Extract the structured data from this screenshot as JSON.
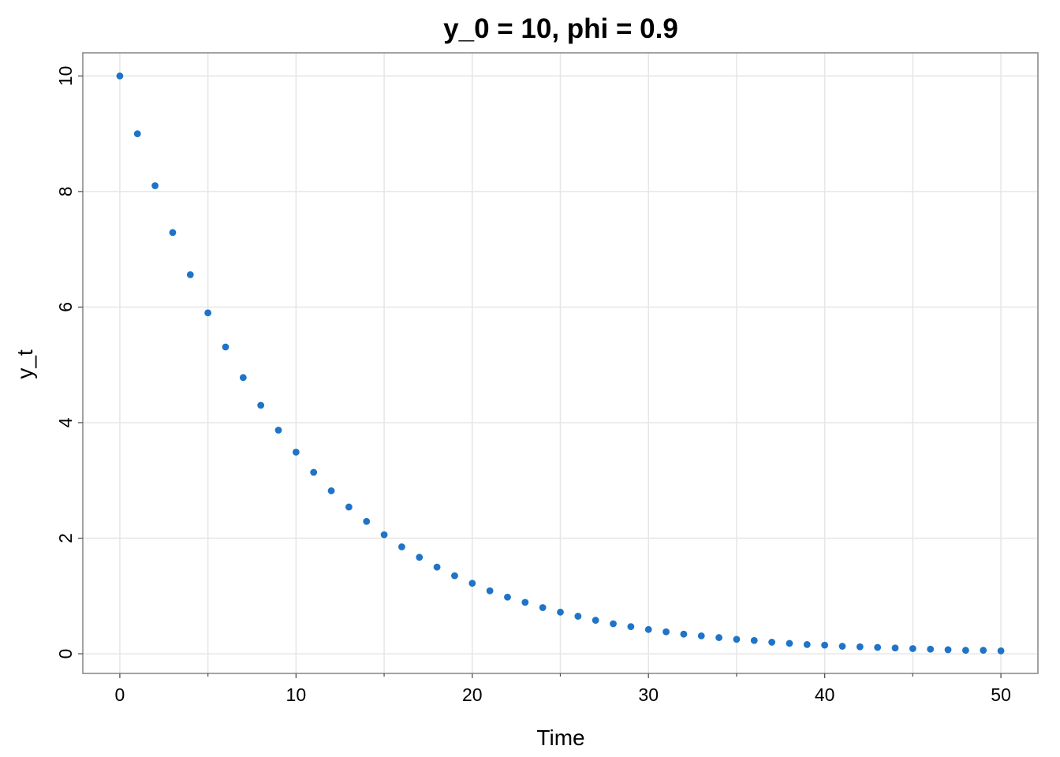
{
  "chart_data": {
    "type": "scatter",
    "title": "y_0 = 10, phi = 0.9",
    "xlabel": "Time",
    "ylabel": "y_t",
    "xlim": [
      -2.1,
      52.1
    ],
    "ylim": [
      -0.34,
      10.4
    ],
    "x_ticks": [
      0,
      10,
      20,
      30,
      40,
      50
    ],
    "x_tick_labels": [
      "0",
      "10",
      "20",
      "30",
      "40",
      "50"
    ],
    "x_minor_ticks": [
      5,
      15,
      25,
      35,
      45
    ],
    "y_ticks": [
      0,
      2,
      4,
      6,
      8,
      10
    ],
    "y_tick_labels": [
      "0",
      "2",
      "4",
      "6",
      "8",
      "10"
    ],
    "grid": true,
    "point_color": "#1f74c7",
    "series": [
      {
        "x": [
          0,
          1,
          2,
          3,
          4,
          5,
          6,
          7,
          8,
          9,
          10,
          11,
          12,
          13,
          14,
          15,
          16,
          17,
          18,
          19,
          20,
          21,
          22,
          23,
          24,
          25,
          26,
          27,
          28,
          29,
          30,
          31,
          32,
          33,
          34,
          35,
          36,
          37,
          38,
          39,
          40,
          41,
          42,
          43,
          44,
          45,
          46,
          47,
          48,
          49,
          50
        ],
        "values": [
          10.0,
          9.0,
          8.1,
          7.29,
          6.56,
          5.9,
          5.31,
          4.78,
          4.3,
          3.87,
          3.49,
          3.14,
          2.82,
          2.54,
          2.29,
          2.06,
          1.85,
          1.67,
          1.5,
          1.35,
          1.22,
          1.09,
          0.98,
          0.89,
          0.8,
          0.72,
          0.65,
          0.58,
          0.52,
          0.47,
          0.42,
          0.38,
          0.34,
          0.31,
          0.28,
          0.25,
          0.23,
          0.2,
          0.18,
          0.16,
          0.15,
          0.13,
          0.12,
          0.11,
          0.1,
          0.09,
          0.08,
          0.07,
          0.06,
          0.06,
          0.05
        ]
      }
    ]
  }
}
